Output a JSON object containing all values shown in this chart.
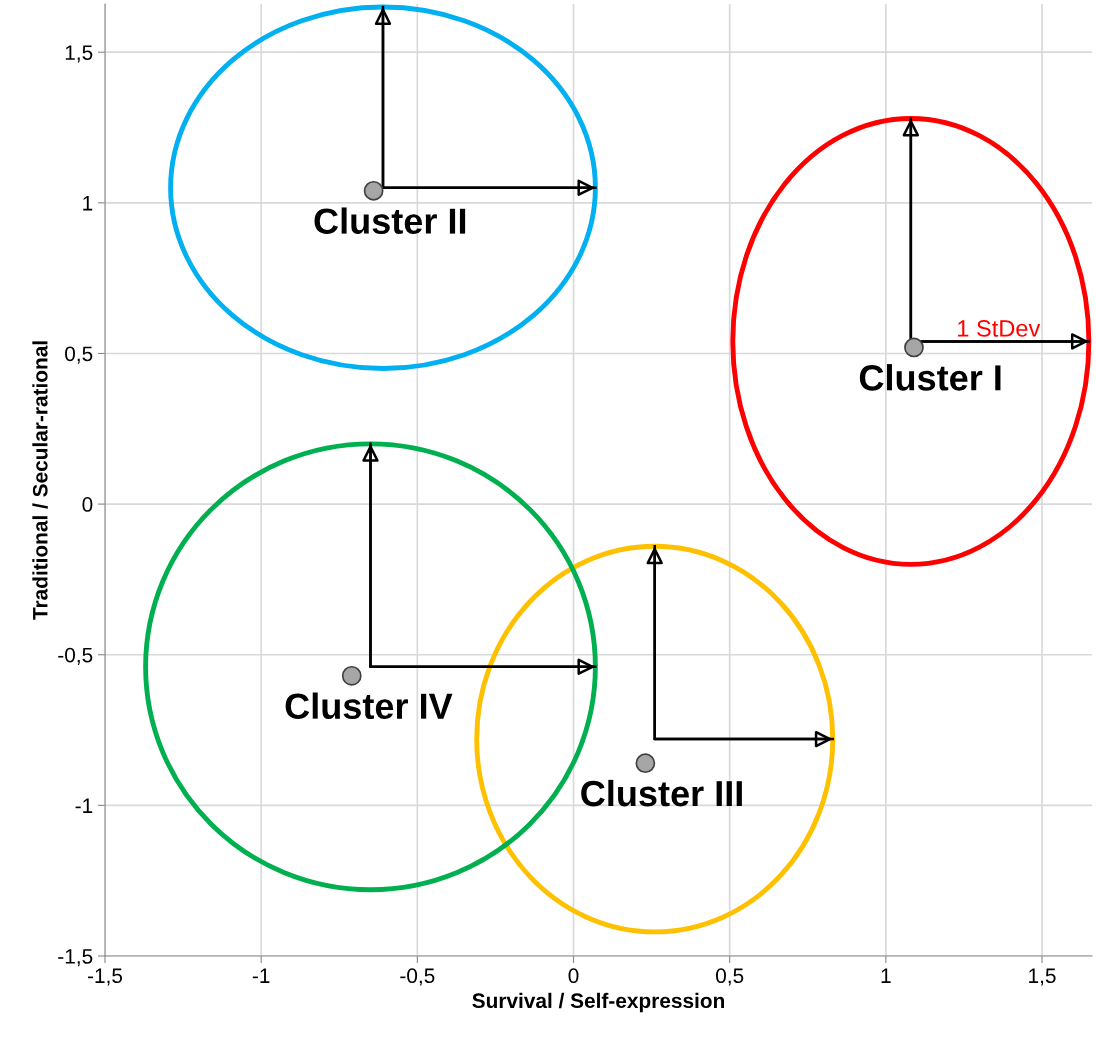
{
  "chart_data": {
    "type": "scatter",
    "xlabel": "Survival / Self-expression",
    "ylabel": "Traditional / Secular-rational",
    "xlim": [
      -1.5,
      1.66
    ],
    "ylim": [
      -1.5,
      1.66
    ],
    "xticks": [
      {
        "value": -1.5,
        "label": "-1,5"
      },
      -1,
      {
        "value": -0.5,
        "label": "-0,5"
      },
      0,
      {
        "value": 0.5,
        "label": "0,5"
      },
      1,
      {
        "value": 1.5,
        "label": "1,5"
      }
    ],
    "yticks": [
      {
        "value": -1.5,
        "label": "-1,5"
      },
      -1,
      {
        "value": -0.5,
        "label": "-0,5"
      },
      0,
      {
        "value": 0.5,
        "label": "0,5"
      },
      1,
      {
        "value": 1.5,
        "label": "1,5"
      }
    ],
    "grid": true,
    "legend": false,
    "series": [
      {
        "type": "line",
        "color": "#000000",
        "x": [
          1.08,
          1.08,
          1.65
        ],
        "values": [
          1.28,
          0.54,
          0.54
        ]
      },
      {
        "type": "line",
        "color": "#000000",
        "x": [
          -0.61,
          -0.61,
          0.07
        ],
        "values": [
          1.65,
          1.05,
          1.05
        ]
      },
      {
        "type": "line",
        "color": "#000000",
        "x": [
          0.26,
          0.26,
          0.83
        ],
        "values": [
          -0.14,
          -0.78,
          -0.78
        ]
      },
      {
        "type": "line",
        "color": "#000000",
        "x": [
          -0.65,
          -0.65,
          0.07
        ],
        "values": [
          0.2,
          -0.54,
          -0.54
        ]
      },
      {
        "color": "#a6a6a6",
        "marker": "circle",
        "x": [
          1.09,
          -0.64,
          0.23,
          -0.71
        ],
        "values": [
          0.52,
          1.04,
          -0.86,
          -0.57
        ]
      }
    ],
    "annotations": [
      {
        "text": "Cluster I",
        "x": 1.09,
        "y": 0.52
      },
      {
        "text": "Cluster II",
        "x": -0.64,
        "y": 1.04
      },
      {
        "text": "Cluster III",
        "x": 0.23,
        "y": -0.86
      },
      {
        "text": "Cluster IV",
        "x": -0.71,
        "y": -0.57
      },
      {
        "text": "1 StDev",
        "x": 1.36,
        "y": 0.54
      }
    ]
  }
}
